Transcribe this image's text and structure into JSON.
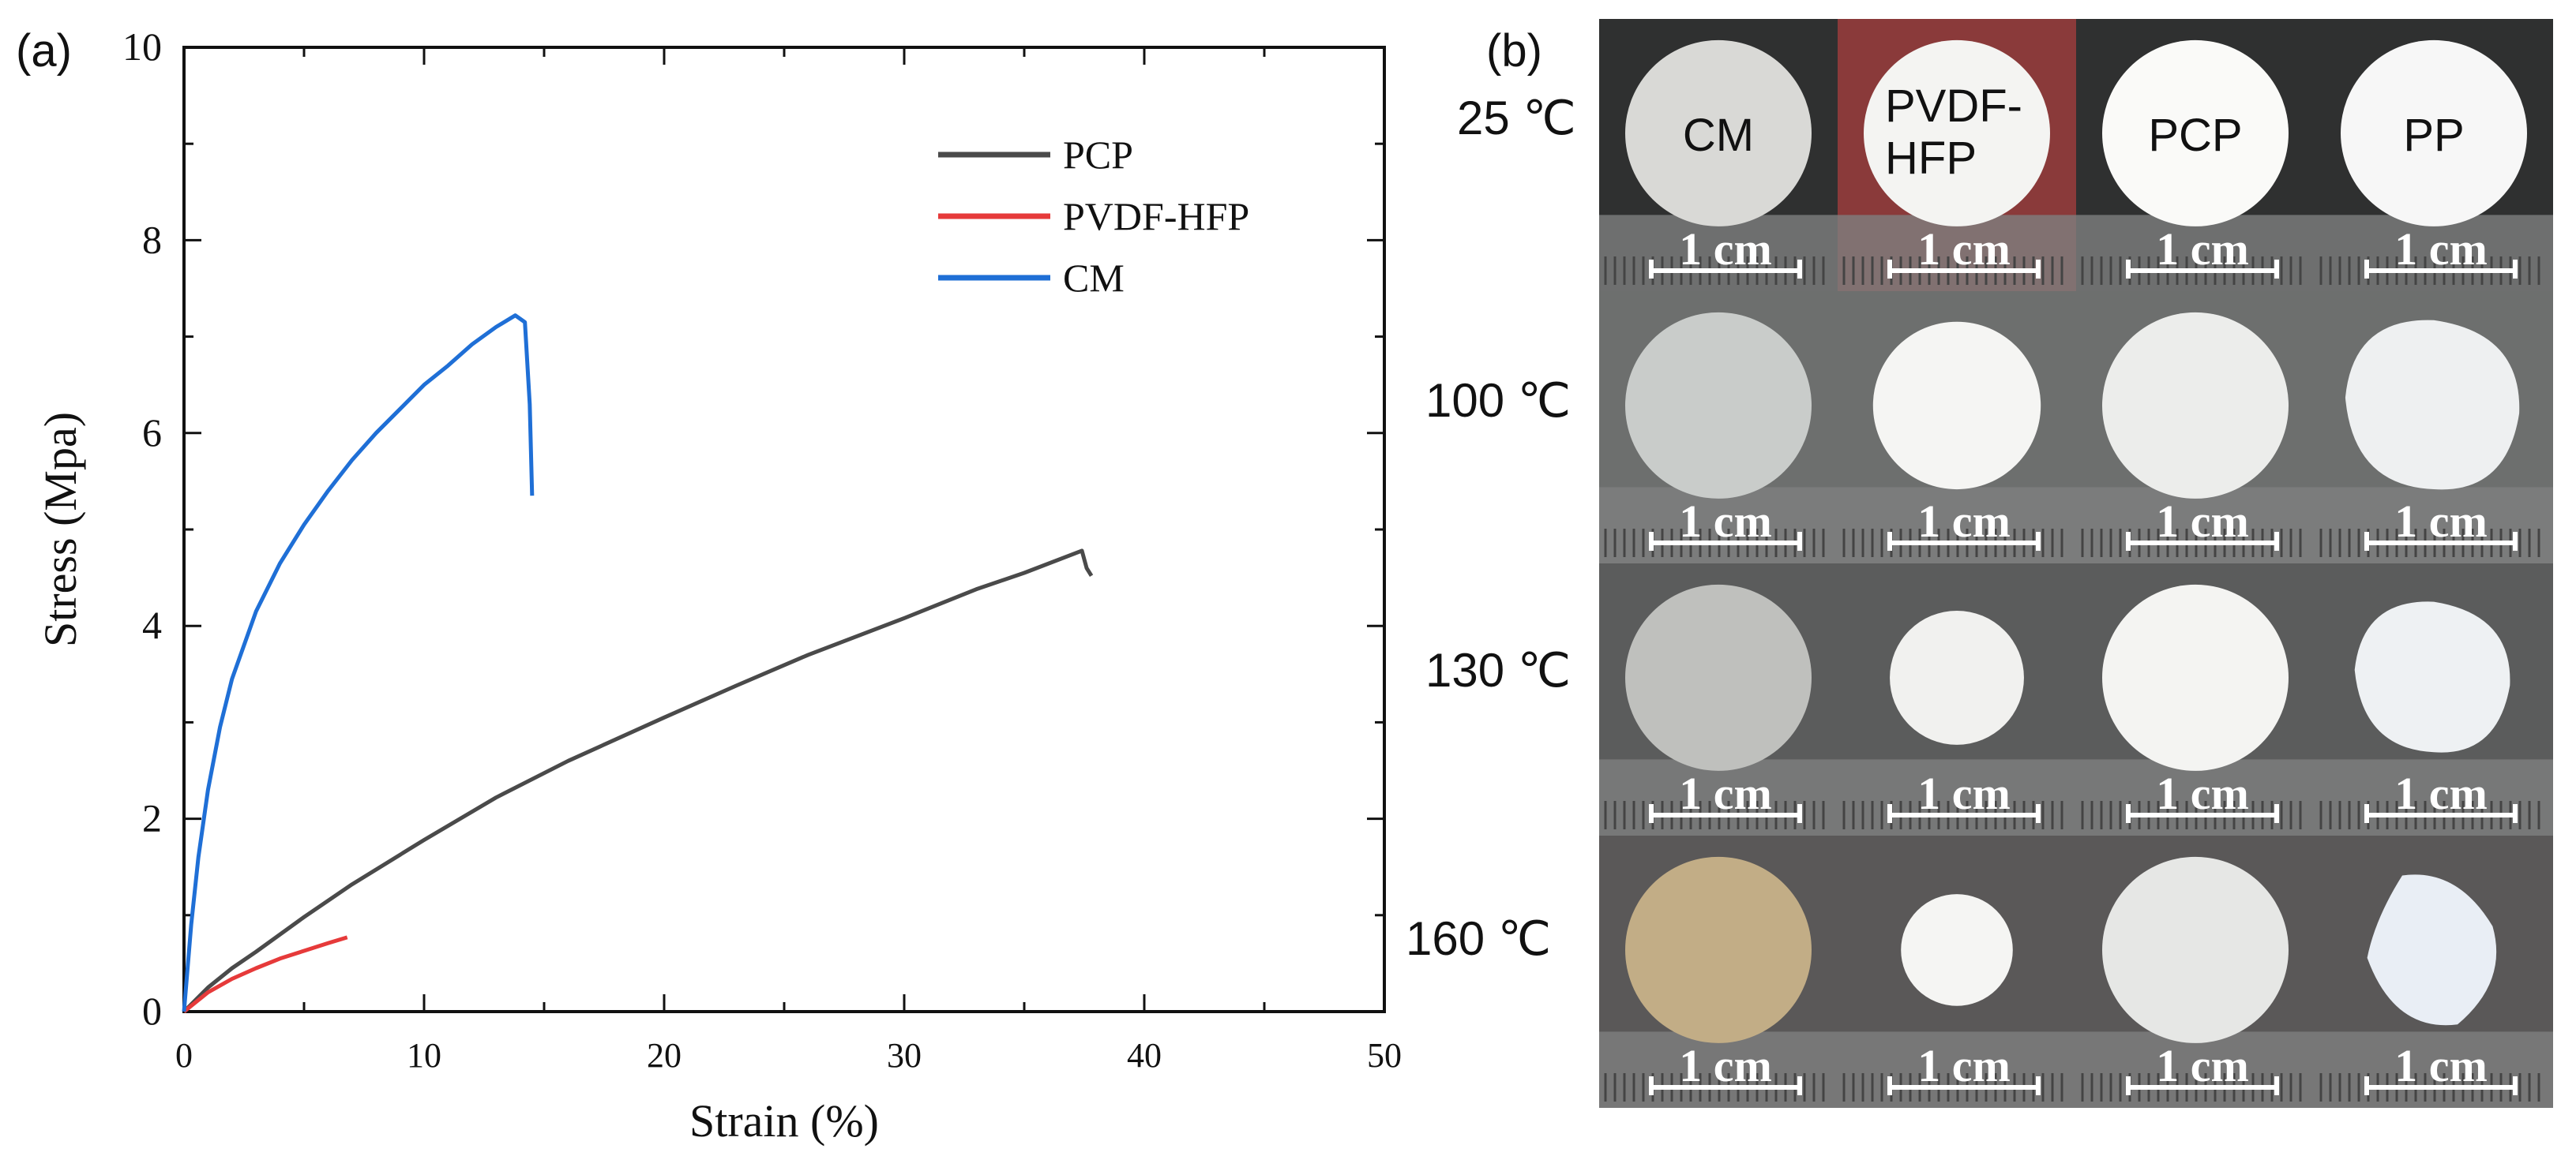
{
  "panel_a_label": "(a)",
  "panel_b_label": "(b)",
  "chart_data": {
    "type": "line",
    "title": "",
    "xlabel": "Strain (%)",
    "ylabel": "Stress (Mpa)",
    "xlim": [
      0,
      50
    ],
    "ylim": [
      0,
      10
    ],
    "xticks": [
      0,
      10,
      20,
      30,
      40,
      50
    ],
    "yticks": [
      0,
      2,
      4,
      6,
      8,
      10
    ],
    "grid": false,
    "legend_position": "top-right",
    "series": [
      {
        "name": "PCP",
        "color": "#4a4a4a",
        "x": [
          0,
          1,
          2,
          3,
          5,
          7,
          10,
          13,
          16,
          20,
          23,
          26,
          30,
          33,
          35,
          37.4,
          37.6,
          37.8
        ],
        "y": [
          0,
          0.25,
          0.45,
          0.62,
          0.98,
          1.32,
          1.78,
          2.22,
          2.6,
          3.05,
          3.38,
          3.7,
          4.08,
          4.38,
          4.55,
          4.78,
          4.6,
          4.52
        ]
      },
      {
        "name": "PVDF-HFP",
        "color": "#e63a3a",
        "x": [
          0,
          0.5,
          1,
          2,
          3,
          4,
          5,
          6,
          6.8
        ],
        "y": [
          0,
          0.1,
          0.2,
          0.34,
          0.45,
          0.55,
          0.63,
          0.71,
          0.77
        ]
      },
      {
        "name": "CM",
        "color": "#1f6fd6",
        "x": [
          0,
          0.3,
          0.6,
          1,
          1.5,
          2,
          3,
          4,
          5,
          6,
          7,
          8,
          9,
          10,
          11,
          12,
          13,
          13.8,
          14.2,
          14.4,
          14.5
        ],
        "y": [
          0,
          0.9,
          1.6,
          2.3,
          2.95,
          3.45,
          4.15,
          4.65,
          5.05,
          5.4,
          5.72,
          6.0,
          6.25,
          6.5,
          6.7,
          6.92,
          7.1,
          7.22,
          7.15,
          6.3,
          5.35
        ]
      }
    ]
  },
  "photo_grid": {
    "columns": [
      {
        "label": "CM"
      },
      {
        "label": "PVDF-\nHFP"
      },
      {
        "label": "PCP"
      },
      {
        "label": "PP"
      }
    ],
    "rows": [
      {
        "temperature": "25 ℃",
        "cells": [
          {
            "shrink": 1.0,
            "shape": "circle",
            "tone": "#d9d9d6"
          },
          {
            "shrink": 1.0,
            "shape": "circle",
            "tone": "#f4f4f2"
          },
          {
            "shrink": 1.0,
            "shape": "circle",
            "tone": "#fafaf8"
          },
          {
            "shrink": 1.0,
            "shape": "circle",
            "tone": "#f7f7f7"
          }
        ]
      },
      {
        "temperature": "100 ℃",
        "cells": [
          {
            "shrink": 1.0,
            "shape": "circle",
            "tone": "#c9ccca"
          },
          {
            "shrink": 0.9,
            "shape": "circle",
            "tone": "#f5f5f3"
          },
          {
            "shrink": 1.0,
            "shape": "circle",
            "tone": "#ecedeb"
          },
          {
            "shrink": 0.95,
            "shape": "blob",
            "tone": "#eef0f1"
          }
        ]
      },
      {
        "temperature": "130 ℃",
        "cells": [
          {
            "shrink": 1.0,
            "shape": "circle",
            "tone": "#bfc0bd"
          },
          {
            "shrink": 0.72,
            "shape": "circle",
            "tone": "#f1f1ef"
          },
          {
            "shrink": 1.0,
            "shape": "circle",
            "tone": "#f4f4f2"
          },
          {
            "shrink": 0.85,
            "shape": "blob",
            "tone": "#eef1f3"
          }
        ]
      },
      {
        "temperature": "160 ℃",
        "cells": [
          {
            "shrink": 1.0,
            "shape": "circle",
            "tone": "#c2ad86"
          },
          {
            "shrink": 0.6,
            "shape": "circle",
            "tone": "#f5f5f3"
          },
          {
            "shrink": 1.0,
            "shape": "circle",
            "tone": "#e6e7e5"
          },
          {
            "shrink": 0.8,
            "shape": "blob2",
            "tone": "#e9eef5"
          }
        ]
      }
    ],
    "scale_bar_label": "1 cm"
  }
}
